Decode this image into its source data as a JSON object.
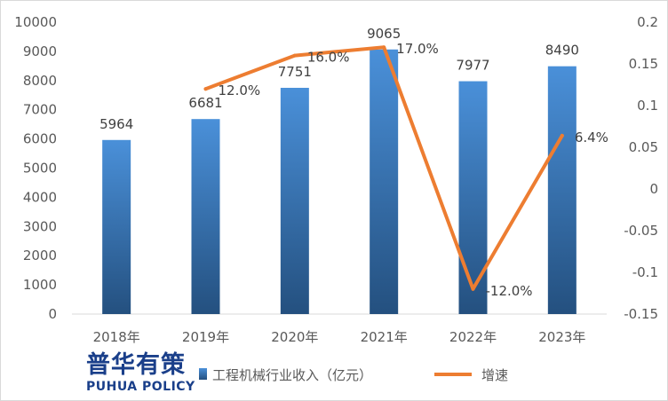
{
  "chart_data": {
    "type": "bar",
    "categories": [
      "2018年",
      "2019年",
      "2020年",
      "2021年",
      "2022年",
      "2023年"
    ],
    "series": [
      {
        "name": "工程机械行业收入（亿元）",
        "type": "bar",
        "axis": "left",
        "values": [
          5964,
          6681,
          7751,
          9065,
          7977,
          8490
        ],
        "labels": [
          "5964",
          "6681",
          "7751",
          "9065",
          "7977",
          "8490"
        ],
        "color": "#4a90d9",
        "color_dark": "#24507f"
      },
      {
        "name": "增速",
        "type": "line",
        "axis": "right",
        "values": [
          null,
          0.12,
          0.16,
          0.17,
          -0.12,
          0.064
        ],
        "labels": [
          "",
          "12.0%",
          "16.0%",
          "17.0%",
          "-12.0%",
          "6.4%"
        ],
        "color": "#ed7d31"
      }
    ],
    "y_left": {
      "range": [
        0,
        10000
      ],
      "ticks": [
        "0",
        "1000",
        "2000",
        "3000",
        "4000",
        "5000",
        "6000",
        "7000",
        "8000",
        "9000",
        "10000"
      ]
    },
    "y_right": {
      "range": [
        -0.15,
        0.2
      ],
      "ticks": [
        "-0.15",
        "-0.1",
        "-0.05",
        "0",
        "0.05",
        "0.1",
        "0.15",
        "0.2"
      ]
    },
    "grid": false,
    "legend_position": "bottom"
  },
  "watermark": {
    "cn": "普华有策",
    "en": "PUHUA POLICY"
  }
}
